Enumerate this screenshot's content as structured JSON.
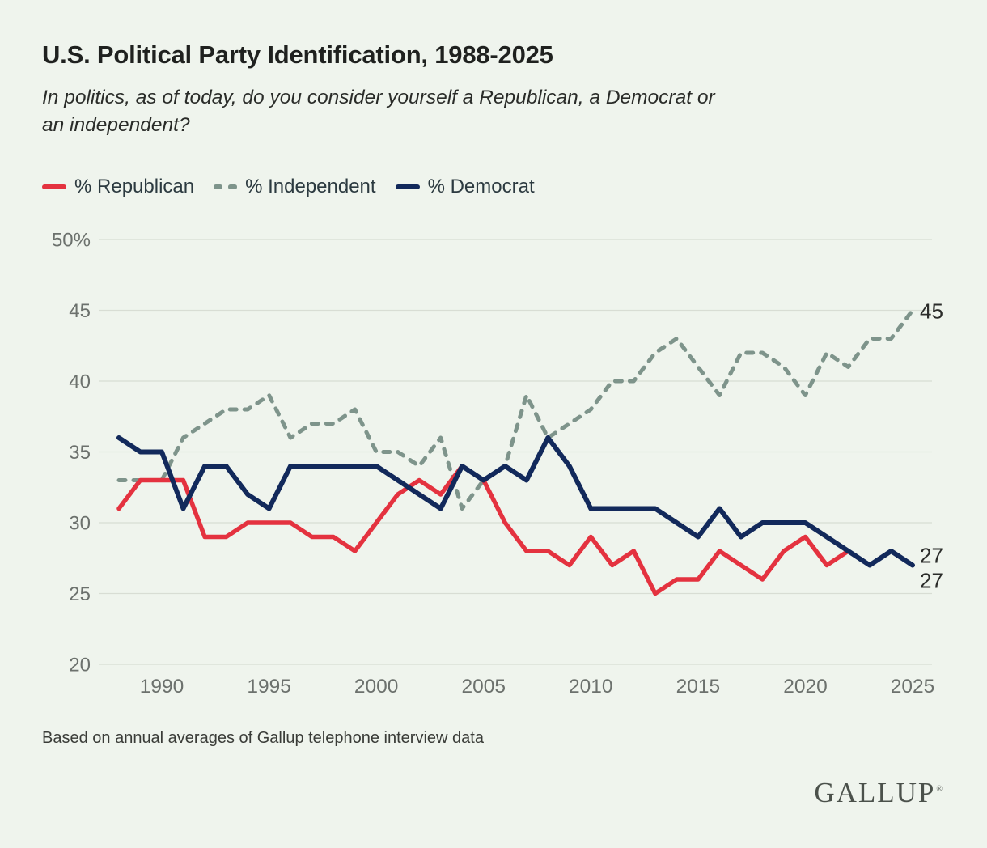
{
  "header": {
    "title": "U.S. Political Party Identification, 1988-2025",
    "subtitle_line1": "In politics, as of today, do you consider yourself a Republican, a Democrat or",
    "subtitle_line2": "an independent?"
  },
  "legend": [
    {
      "label": "% Republican",
      "color": "#e4323f",
      "style": "solid"
    },
    {
      "label": "% Independent",
      "color": "#7e948b",
      "style": "dashed"
    },
    {
      "label": "% Democrat",
      "color": "#12295b",
      "style": "solid"
    }
  ],
  "chart_data": {
    "type": "line",
    "title": "U.S. Political Party Identification, 1988-2025",
    "x_start": 1988,
    "x_end": 2025,
    "x_ticks": [
      1990,
      1995,
      2000,
      2005,
      2010,
      2015,
      2020,
      2025
    ],
    "y_ticks": [
      50,
      45,
      40,
      35,
      30,
      25,
      20
    ],
    "y_top_tick_label": "50%",
    "ylim": [
      20,
      50
    ],
    "grid": true,
    "legend_position": "top",
    "series": [
      {
        "name": "% Republican",
        "color": "#e4323f",
        "dashed": false,
        "values": [
          31,
          33,
          33,
          33,
          29,
          29,
          30,
          30,
          30,
          29,
          29,
          28,
          30,
          32,
          33,
          32,
          34,
          33,
          30,
          28,
          28,
          27,
          29,
          27,
          28,
          25,
          26,
          26,
          28,
          27,
          26,
          28,
          29,
          27,
          28,
          27,
          28,
          27
        ]
      },
      {
        "name": "% Independent",
        "color": "#7e948b",
        "dashed": true,
        "values": [
          33,
          33,
          33,
          36,
          37,
          38,
          38,
          39,
          36,
          37,
          37,
          38,
          35,
          35,
          34,
          36,
          31,
          33,
          34,
          39,
          36,
          37,
          38,
          40,
          40,
          42,
          43,
          41,
          39,
          42,
          42,
          41,
          39,
          42,
          41,
          43,
          43,
          45
        ]
      },
      {
        "name": "% Democrat",
        "color": "#12295b",
        "dashed": false,
        "values": [
          36,
          35,
          35,
          31,
          34,
          34,
          32,
          31,
          34,
          34,
          34,
          34,
          34,
          33,
          32,
          31,
          34,
          33,
          34,
          33,
          36,
          34,
          31,
          31,
          31,
          31,
          30,
          29,
          31,
          29,
          30,
          30,
          30,
          29,
          28,
          27,
          28,
          27
        ]
      }
    ],
    "end_labels": [
      {
        "text": "45",
        "series": "% Independent"
      },
      {
        "text": "27",
        "series": "% Democrat"
      },
      {
        "text": "27",
        "series": "% Republican"
      }
    ]
  },
  "footer": {
    "note": "Based on annual averages of Gallup telephone interview data",
    "logo": "GALLUP",
    "logo_mark": "®"
  },
  "colors": {
    "background": "#eff4ed",
    "gridline": "#d8ddd4",
    "axis_text": "#6c716d",
    "end_label_text": "#2b2c2a"
  }
}
